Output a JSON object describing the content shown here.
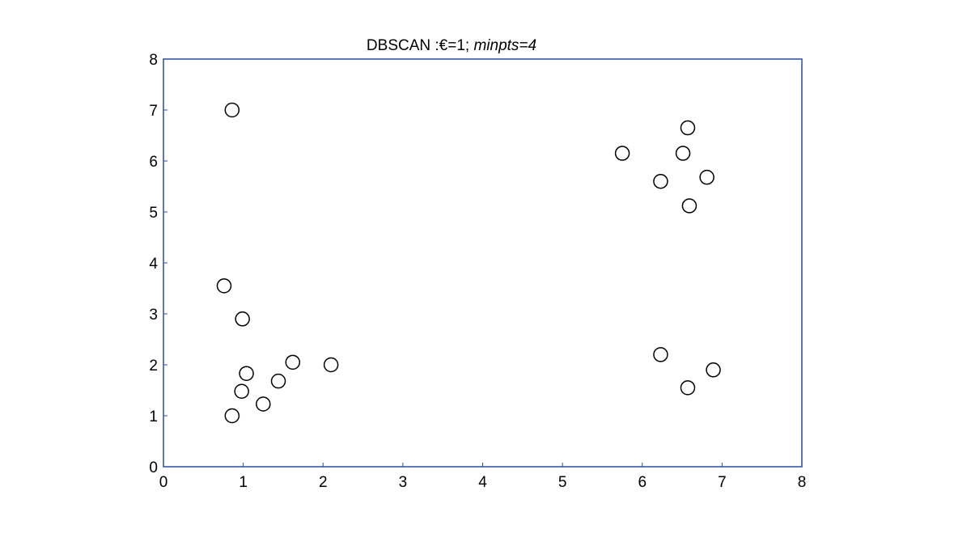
{
  "chart_data": {
    "type": "scatter",
    "title": {
      "prefix": "DBSCAN :€=1; ",
      "italic": "minpts=4"
    },
    "xlabel": "",
    "ylabel": "",
    "xlim": [
      0,
      8
    ],
    "ylim": [
      0,
      8
    ],
    "grid": false,
    "x_ticks": [
      {
        "value": 0,
        "label": "0"
      },
      {
        "value": 1,
        "label": "1"
      },
      {
        "value": 2,
        "label": "2"
      },
      {
        "value": 3,
        "label": "3"
      },
      {
        "value": 4,
        "label": "4"
      },
      {
        "value": 5,
        "label": "5"
      },
      {
        "value": 6,
        "label": "6"
      },
      {
        "value": 7,
        "label": "7"
      },
      {
        "value": 8,
        "label": "8"
      }
    ],
    "y_ticks": [
      {
        "value": 0,
        "label": "0"
      },
      {
        "value": 1,
        "label": "1"
      },
      {
        "value": 2,
        "label": "2"
      },
      {
        "value": 3,
        "label": "3"
      },
      {
        "value": 4,
        "label": "4"
      },
      {
        "value": 5,
        "label": "5"
      },
      {
        "value": 6,
        "label": "6"
      },
      {
        "value": 7,
        "label": "7"
      },
      {
        "value": 8,
        "label": "8"
      }
    ],
    "marker": {
      "shape": "open-circle",
      "stroke": "#000000",
      "fill": "#ffffff"
    },
    "axis_color": "#2f4f8f",
    "points": [
      {
        "x": 0.86,
        "y": 7.0
      },
      {
        "x": 0.76,
        "y": 3.55
      },
      {
        "x": 0.99,
        "y": 2.9
      },
      {
        "x": 1.04,
        "y": 1.83
      },
      {
        "x": 0.98,
        "y": 1.48
      },
      {
        "x": 0.86,
        "y": 1.0
      },
      {
        "x": 1.25,
        "y": 1.23
      },
      {
        "x": 1.44,
        "y": 1.68
      },
      {
        "x": 1.62,
        "y": 2.05
      },
      {
        "x": 2.1,
        "y": 2.0
      },
      {
        "x": 5.75,
        "y": 6.15
      },
      {
        "x": 6.23,
        "y": 5.6
      },
      {
        "x": 6.51,
        "y": 6.15
      },
      {
        "x": 6.57,
        "y": 6.65
      },
      {
        "x": 6.81,
        "y": 5.68
      },
      {
        "x": 6.59,
        "y": 5.12
      },
      {
        "x": 6.23,
        "y": 2.2
      },
      {
        "x": 6.57,
        "y": 1.55
      },
      {
        "x": 6.89,
        "y": 1.9
      }
    ]
  }
}
